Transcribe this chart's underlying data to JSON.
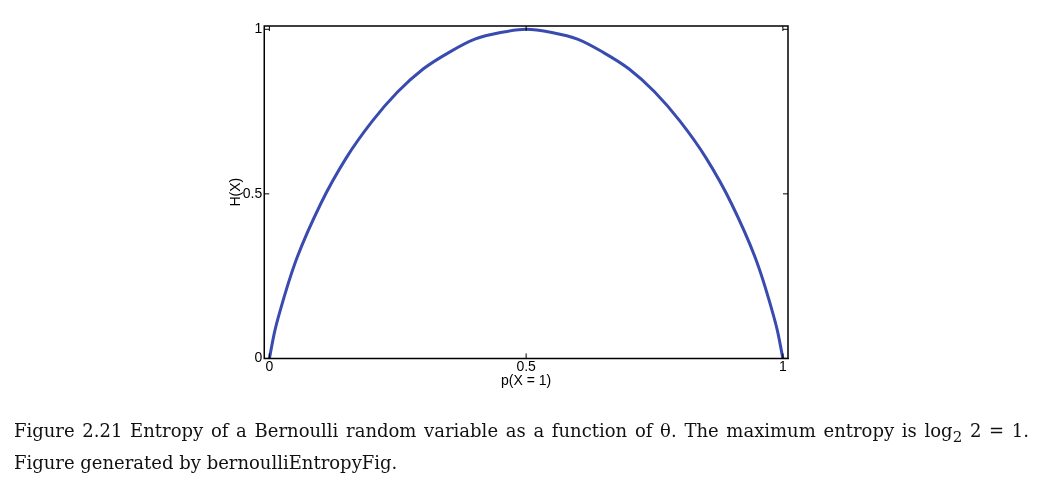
{
  "chart_data": {
    "type": "line",
    "xlabel": "p(X = 1)",
    "ylabel": "H(X)",
    "x": [
      0,
      0.01,
      0.02,
      0.05,
      0.1,
      0.15,
      0.2,
      0.25,
      0.3,
      0.35,
      0.4,
      0.45,
      0.5,
      0.55,
      0.6,
      0.65,
      0.7,
      0.75,
      0.8,
      0.85,
      0.9,
      0.95,
      0.98,
      0.99,
      1
    ],
    "series": [
      {
        "color": "#3a4bb0",
        "values": [
          0,
          0.08,
          0.14,
          0.29,
          0.47,
          0.61,
          0.72,
          0.81,
          0.88,
          0.93,
          0.97,
          0.99,
          1,
          0.99,
          0.97,
          0.93,
          0.88,
          0.81,
          0.72,
          0.61,
          0.47,
          0.29,
          0.14,
          0.08,
          0
        ]
      }
    ],
    "xlim": [
      -0.01,
      1.01
    ],
    "ylim": [
      0,
      1.01
    ],
    "xticks": [
      0,
      0.5,
      1
    ],
    "yticks": [
      0,
      0.5,
      1
    ],
    "grid": false,
    "legend": false,
    "marker": "none",
    "line_style": "solid",
    "annotations": [
      "Figure 2.21  Entropy of a Bernoulli random variable as a function of θ.  The maximum entropy is log$_{2}$ 2 = 1. Figure generated by bernoulliEntropyFig."
    ]
  }
}
